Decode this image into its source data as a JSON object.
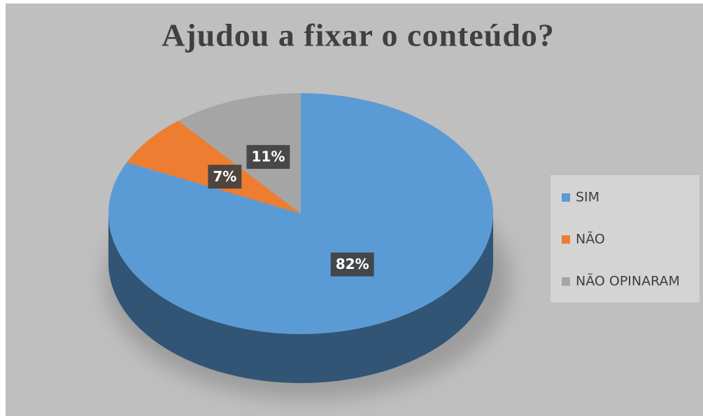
{
  "chart_data": {
    "type": "pie",
    "title": "Ajudou a fixar o conteúdo?",
    "categories": [
      "SIM",
      "NÃO",
      "NÃO OPINARAM"
    ],
    "values": [
      82,
      7,
      11
    ],
    "value_labels": [
      "82%",
      "7%",
      "11%"
    ],
    "colors": [
      "#5b9bd5",
      "#ed7d31",
      "#a5a5a5"
    ],
    "legend": "right"
  }
}
